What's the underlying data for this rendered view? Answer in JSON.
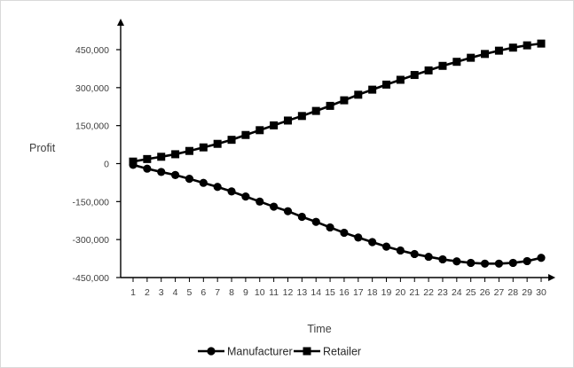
{
  "chart_data": {
    "type": "line",
    "title": "",
    "xlabel": "Time",
    "ylabel": "Profit",
    "x": [
      1,
      2,
      3,
      4,
      5,
      6,
      7,
      8,
      9,
      10,
      11,
      12,
      13,
      14,
      15,
      16,
      17,
      18,
      19,
      20,
      21,
      22,
      23,
      24,
      25,
      26,
      27,
      28,
      29,
      30
    ],
    "x_tick_labels": [
      "1",
      "2",
      "3",
      "4",
      "5",
      "6",
      "7",
      "8",
      "9",
      "10",
      "11",
      "12",
      "13",
      "14",
      "15",
      "16",
      "17",
      "18",
      "19",
      "20",
      "21",
      "22",
      "23",
      "24",
      "25",
      "26",
      "27",
      "28",
      "29",
      "30"
    ],
    "ylim": [
      -450000,
      450000
    ],
    "y_ticks": [
      450000,
      300000,
      150000,
      0,
      -150000,
      -300000,
      -450000
    ],
    "y_tick_labels": [
      "450,000",
      "300,000",
      "150,000",
      "0",
      "-150,000",
      "-300,000",
      "-450,000"
    ],
    "grid": false,
    "legend_position": "bottom",
    "series": [
      {
        "name": "Manufacturer",
        "marker": "circle",
        "color": "#000000",
        "values": [
          -5000,
          -20000,
          -33000,
          -45000,
          -60000,
          -76000,
          -92000,
          -110000,
          -130000,
          -150000,
          -170000,
          -188000,
          -210000,
          -230000,
          -252000,
          -273000,
          -292000,
          -310000,
          -328000,
          -343000,
          -357000,
          -368000,
          -378000,
          -386000,
          -392000,
          -395000,
          -395000,
          -392000,
          -385000,
          -372000
        ]
      },
      {
        "name": "Retailer",
        "marker": "square",
        "color": "#000000",
        "values": [
          8000,
          18000,
          27000,
          37000,
          50000,
          64000,
          78000,
          94000,
          113000,
          132000,
          151000,
          170000,
          188000,
          208000,
          228000,
          250000,
          272000,
          292000,
          312000,
          331000,
          350000,
          368000,
          386000,
          402000,
          418000,
          433000,
          446000,
          458000,
          467000,
          474000
        ]
      }
    ]
  }
}
